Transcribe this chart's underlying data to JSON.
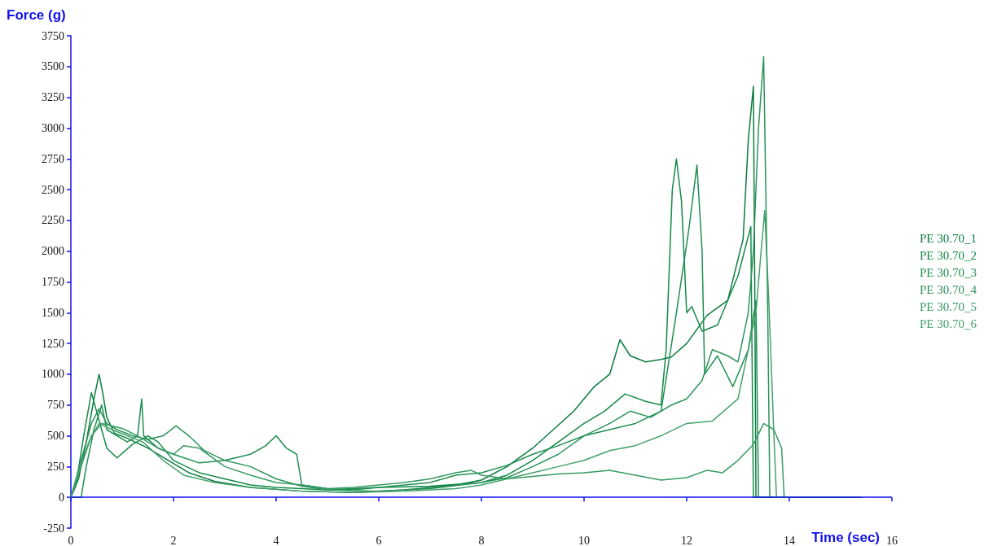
{
  "chart_data": {
    "type": "line",
    "xlabel": "Time (sec)",
    "ylabel": "Force (g)",
    "xlim": [
      0,
      16
    ],
    "xticks": [
      0,
      2,
      4,
      6,
      8,
      10,
      12,
      14,
      16
    ],
    "ylim": [
      -250,
      3750
    ],
    "yticks": [
      -250,
      0,
      250,
      500,
      750,
      1000,
      1250,
      1500,
      1750,
      2000,
      2250,
      2500,
      2750,
      3000,
      3250,
      3500,
      3750
    ],
    "grid": false,
    "ref_lines": [
      {
        "axis": "y",
        "value": 0,
        "color": "#1010ee"
      }
    ],
    "legend": "right",
    "marker": "none",
    "line_style": "solid",
    "series": [
      {
        "name": "PE 30.70_1",
        "color": "#0b7b3e",
        "x": [
          0,
          0.15,
          0.3,
          0.45,
          0.55,
          0.62,
          0.7,
          0.85,
          1.1,
          1.5,
          1.9,
          2.3,
          2.8,
          3.5,
          4.5,
          5.5,
          6.5,
          7.5,
          8,
          8.5,
          9,
          9.4,
          9.8,
          10.2,
          10.5,
          10.7,
          10.9,
          11.2,
          11.5,
          11.7,
          12,
          12.4,
          12.8,
          13.1,
          13.2,
          13.3,
          13.33,
          13.35,
          14,
          15.4
        ],
        "values": [
          0,
          150,
          450,
          800,
          1000,
          850,
          650,
          520,
          480,
          400,
          300,
          200,
          130,
          80,
          50,
          40,
          60,
          100,
          140,
          250,
          400,
          550,
          700,
          900,
          1000,
          1280,
          1150,
          1100,
          1120,
          1140,
          1250,
          1480,
          1600,
          2100,
          2900,
          3340,
          1500,
          0,
          0,
          0
        ]
      },
      {
        "name": "PE 30.70_2",
        "color": "#138a48",
        "x": [
          0,
          0.1,
          0.25,
          0.4,
          0.5,
          0.7,
          0.9,
          1.2,
          1.5,
          1.7,
          2,
          2.5,
          3,
          3.5,
          4,
          5,
          6,
          7,
          8,
          8.5,
          9,
          9.5,
          10,
          10.4,
          10.8,
          11.2,
          11.5,
          11.6,
          11.72,
          11.8,
          11.9,
          12,
          12.1,
          12.3,
          12.6,
          13,
          13.25,
          13.3,
          14
        ],
        "values": [
          0,
          100,
          500,
          850,
          700,
          400,
          320,
          430,
          500,
          450,
          300,
          200,
          150,
          100,
          80,
          60,
          80,
          90,
          120,
          180,
          300,
          450,
          600,
          700,
          840,
          780,
          750,
          1200,
          2500,
          2750,
          2400,
          1500,
          1550,
          1350,
          1400,
          1800,
          2200,
          0,
          0
        ]
      },
      {
        "name": "PE 30.70_3",
        "color": "#1d8f50",
        "x": [
          0,
          0.2,
          0.3,
          0.45,
          0.6,
          0.7,
          0.9,
          1.1,
          1.3,
          1.38,
          1.42,
          1.7,
          2,
          2.5,
          3,
          3.5,
          3.8,
          4,
          4.2,
          4.4,
          4.5,
          5,
          5.5,
          6,
          7,
          7.5,
          8,
          8.5,
          9,
          9.5,
          10,
          10.5,
          11,
          11.5,
          11.8,
          12.05,
          12.2,
          12.3,
          12.35,
          12.6,
          12.9,
          13.2,
          13.35,
          13.4,
          14
        ],
        "values": [
          0,
          0,
          250,
          550,
          750,
          550,
          500,
          450,
          500,
          800,
          500,
          400,
          350,
          280,
          300,
          350,
          420,
          500,
          400,
          350,
          100,
          70,
          60,
          80,
          120,
          180,
          200,
          260,
          350,
          420,
          500,
          550,
          600,
          700,
          1500,
          2200,
          2700,
          2000,
          1000,
          1150,
          900,
          1200,
          1600,
          0,
          0
        ]
      },
      {
        "name": "PE 30.70_4",
        "color": "#2a9459",
        "x": [
          0,
          0.2,
          0.4,
          0.55,
          0.7,
          0.9,
          1.2,
          1.5,
          1.8,
          2.05,
          2.3,
          2.6,
          3,
          3.5,
          4,
          4.5,
          5,
          6,
          7,
          8,
          8.5,
          9,
          9.5,
          10,
          10.5,
          10.9,
          11.3,
          11.7,
          12,
          12.3,
          12.5,
          12.8,
          13,
          13.2,
          13.3,
          13.4,
          13.5,
          13.58,
          13.62,
          14
        ],
        "values": [
          0,
          300,
          600,
          720,
          600,
          550,
          500,
          470,
          500,
          580,
          500,
          380,
          300,
          250,
          150,
          90,
          60,
          50,
          70,
          120,
          160,
          250,
          350,
          500,
          600,
          700,
          650,
          750,
          800,
          950,
          1200,
          1150,
          1100,
          1500,
          2000,
          3000,
          3580,
          1500,
          0,
          0
        ]
      },
      {
        "name": "PE 30.70_5",
        "color": "#369a62",
        "x": [
          0,
          0.2,
          0.4,
          0.6,
          0.8,
          1,
          1.3,
          1.7,
          2,
          2.2,
          2.5,
          3,
          3.5,
          4,
          4.5,
          5,
          5.5,
          6,
          6.5,
          7,
          7.5,
          7.8,
          8,
          8.5,
          9,
          9.5,
          10,
          10.5,
          11,
          11.5,
          12,
          12.4,
          12.7,
          13,
          13.3,
          13.5,
          13.7,
          13.85,
          13.9,
          14
        ],
        "values": [
          0,
          250,
          500,
          600,
          580,
          560,
          500,
          400,
          350,
          420,
          400,
          250,
          180,
          120,
          100,
          70,
          80,
          100,
          120,
          150,
          200,
          220,
          180,
          150,
          170,
          190,
          200,
          220,
          180,
          140,
          160,
          220,
          200,
          300,
          430,
          600,
          550,
          400,
          0,
          0
        ]
      },
      {
        "name": "PE 30.70_6",
        "color": "#43a16b",
        "x": [
          0,
          0.15,
          0.35,
          0.55,
          0.8,
          1.1,
          1.4,
          1.8,
          2.2,
          2.8,
          3.5,
          4.5,
          5.5,
          6.5,
          7.5,
          8,
          8.5,
          9,
          9.5,
          10,
          10.5,
          11,
          11.5,
          12,
          12.5,
          13,
          13.2,
          13.35,
          13.45,
          13.52,
          13.6,
          13.7,
          13.75,
          14
        ],
        "values": [
          0,
          200,
          450,
          600,
          550,
          500,
          450,
          300,
          180,
          120,
          80,
          50,
          40,
          50,
          70,
          100,
          150,
          200,
          250,
          300,
          380,
          420,
          500,
          600,
          620,
          800,
          1200,
          1500,
          2000,
          2330,
          1600,
          500,
          0,
          0
        ]
      }
    ]
  }
}
